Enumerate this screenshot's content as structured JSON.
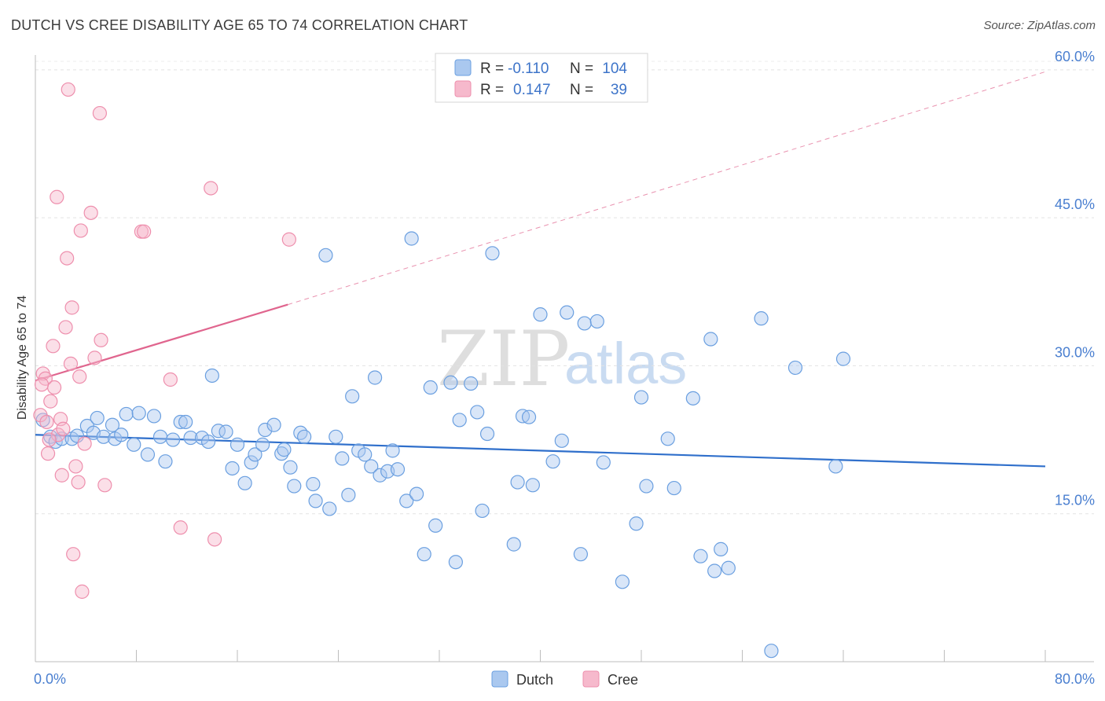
{
  "header": {
    "title": "DUTCH VS CREE DISABILITY AGE 65 TO 74 CORRELATION CHART",
    "source": "Source: ZipAtlas.com"
  },
  "watermark": {
    "zip": "ZIP",
    "atlas": "atlas"
  },
  "legend": {
    "r_label": "R =",
    "n_label": "N =",
    "rows": [
      {
        "series": "Dutch",
        "r": "-0.110",
        "n": "104",
        "color": "#aac8ef"
      },
      {
        "series": "Cree",
        "r": "0.147",
        "n": "39",
        "color": "#f6b9cc"
      }
    ]
  },
  "bottom_legend": [
    {
      "label": "Dutch",
      "color": "#aac8ef"
    },
    {
      "label": "Cree",
      "color": "#f6b9cc"
    }
  ],
  "chart_data": {
    "type": "scatter",
    "title": "DUTCH VS CREE DISABILITY AGE 65 TO 74 CORRELATION CHART",
    "xlabel": "",
    "ylabel": "Disability Age 65 to 74",
    "xlim": [
      0,
      80
    ],
    "ylim": [
      0,
      61.5
    ],
    "x_tick_labels": [
      "0.0%",
      "80.0%"
    ],
    "y_ticks": [
      15,
      30,
      45,
      60
    ],
    "y_tick_labels": [
      "15.0%",
      "30.0%",
      "45.0%",
      "60.0%"
    ],
    "grid": true,
    "legend_position": "top-center",
    "series": [
      {
        "name": "Dutch",
        "color": "#6a9fe0",
        "fill": "#aac8ef",
        "trend": {
          "x": [
            0,
            80
          ],
          "y": [
            23.0,
            19.8
          ],
          "color": "#2f6fcb",
          "style": "solid"
        },
        "points": [
          [
            0.6,
            24.5
          ],
          [
            1.2,
            22.8
          ],
          [
            1.6,
            22.3
          ],
          [
            2.1,
            22.6
          ],
          [
            2.9,
            22.6
          ],
          [
            3.3,
            22.9
          ],
          [
            4.1,
            23.9
          ],
          [
            4.6,
            23.2
          ],
          [
            4.9,
            24.7
          ],
          [
            5.4,
            22.8
          ],
          [
            6.1,
            24.0
          ],
          [
            6.3,
            22.6
          ],
          [
            6.8,
            23.0
          ],
          [
            7.2,
            25.1
          ],
          [
            7.8,
            22.0
          ],
          [
            8.2,
            25.2
          ],
          [
            8.9,
            21.0
          ],
          [
            9.4,
            24.9
          ],
          [
            9.9,
            22.8
          ],
          [
            10.3,
            20.3
          ],
          [
            10.9,
            22.5
          ],
          [
            11.5,
            24.3
          ],
          [
            11.9,
            24.3
          ],
          [
            12.3,
            22.7
          ],
          [
            13.2,
            22.7
          ],
          [
            13.7,
            22.3
          ],
          [
            14.0,
            29.0
          ],
          [
            14.5,
            23.4
          ],
          [
            15.1,
            23.3
          ],
          [
            15.6,
            19.6
          ],
          [
            16.0,
            22.0
          ],
          [
            16.6,
            18.1
          ],
          [
            17.1,
            20.2
          ],
          [
            17.4,
            21.0
          ],
          [
            18.0,
            22.0
          ],
          [
            18.2,
            23.5
          ],
          [
            18.9,
            24.0
          ],
          [
            19.5,
            21.1
          ],
          [
            19.7,
            21.5
          ],
          [
            20.2,
            19.7
          ],
          [
            20.5,
            17.8
          ],
          [
            21.0,
            23.2
          ],
          [
            21.3,
            22.8
          ],
          [
            22.0,
            18.0
          ],
          [
            22.2,
            16.3
          ],
          [
            23.0,
            41.2
          ],
          [
            23.3,
            15.5
          ],
          [
            23.8,
            22.8
          ],
          [
            24.3,
            20.6
          ],
          [
            24.8,
            16.9
          ],
          [
            25.1,
            26.9
          ],
          [
            25.6,
            21.4
          ],
          [
            26.1,
            21.0
          ],
          [
            26.6,
            19.8
          ],
          [
            26.9,
            28.8
          ],
          [
            27.3,
            18.9
          ],
          [
            27.9,
            19.3
          ],
          [
            28.3,
            21.4
          ],
          [
            28.7,
            19.5
          ],
          [
            29.4,
            16.3
          ],
          [
            29.8,
            42.9
          ],
          [
            30.2,
            17.0
          ],
          [
            30.8,
            10.9
          ],
          [
            31.3,
            27.8
          ],
          [
            31.7,
            13.8
          ],
          [
            32.9,
            28.3
          ],
          [
            33.3,
            10.1
          ],
          [
            33.6,
            24.5
          ],
          [
            34.5,
            28.2
          ],
          [
            35.0,
            25.3
          ],
          [
            35.4,
            15.3
          ],
          [
            35.8,
            23.1
          ],
          [
            36.2,
            41.4
          ],
          [
            37.9,
            11.9
          ],
          [
            38.2,
            18.2
          ],
          [
            38.6,
            24.9
          ],
          [
            39.1,
            24.8
          ],
          [
            39.4,
            17.9
          ],
          [
            40.0,
            35.2
          ],
          [
            41.0,
            20.3
          ],
          [
            41.7,
            22.4
          ],
          [
            42.1,
            35.4
          ],
          [
            43.2,
            10.9
          ],
          [
            43.5,
            34.3
          ],
          [
            44.5,
            34.5
          ],
          [
            45.0,
            20.2
          ],
          [
            46.5,
            8.1
          ],
          [
            47.6,
            14.0
          ],
          [
            48.0,
            26.8
          ],
          [
            48.4,
            17.8
          ],
          [
            50.1,
            22.6
          ],
          [
            50.6,
            17.6
          ],
          [
            52.1,
            26.7
          ],
          [
            52.7,
            10.7
          ],
          [
            53.5,
            32.7
          ],
          [
            53.8,
            9.2
          ],
          [
            54.3,
            11.4
          ],
          [
            54.9,
            9.5
          ],
          [
            57.5,
            34.8
          ],
          [
            58.3,
            1.1
          ],
          [
            60.2,
            29.8
          ],
          [
            63.4,
            19.8
          ],
          [
            64.0,
            30.7
          ]
        ]
      },
      {
        "name": "Cree",
        "color": "#ee8fad",
        "fill": "#f6b9cc",
        "trend": {
          "x": [
            0,
            20
          ],
          "y": [
            28.5,
            36.2
          ],
          "color": "#e0658e",
          "style": "solid"
        },
        "trend_extension": {
          "x": [
            20,
            80
          ],
          "y": [
            36.2,
            59.8
          ],
          "style": "dashed"
        },
        "points": [
          [
            0.4,
            25.0
          ],
          [
            0.6,
            29.2
          ],
          [
            0.8,
            28.7
          ],
          [
            1.0,
            21.1
          ],
          [
            1.2,
            26.4
          ],
          [
            1.4,
            32.0
          ],
          [
            1.5,
            27.8
          ],
          [
            1.7,
            47.1
          ],
          [
            1.8,
            23.0
          ],
          [
            2.0,
            24.6
          ],
          [
            2.1,
            18.9
          ],
          [
            2.4,
            33.9
          ],
          [
            2.5,
            40.9
          ],
          [
            2.6,
            58.0
          ],
          [
            2.8,
            30.2
          ],
          [
            2.9,
            35.9
          ],
          [
            3.0,
            10.9
          ],
          [
            3.2,
            19.8
          ],
          [
            3.4,
            18.2
          ],
          [
            3.5,
            28.9
          ],
          [
            3.6,
            43.7
          ],
          [
            3.7,
            7.1
          ],
          [
            3.9,
            22.1
          ],
          [
            4.4,
            45.5
          ],
          [
            4.7,
            30.8
          ],
          [
            5.1,
            55.6
          ],
          [
            5.2,
            32.6
          ],
          [
            5.5,
            17.9
          ],
          [
            8.4,
            43.6
          ],
          [
            8.6,
            43.6
          ],
          [
            10.7,
            28.6
          ],
          [
            11.5,
            13.6
          ],
          [
            13.9,
            48.0
          ],
          [
            14.2,
            12.4
          ],
          [
            20.1,
            42.8
          ],
          [
            0.5,
            28.1
          ],
          [
            1.1,
            22.5
          ],
          [
            0.9,
            24.3
          ],
          [
            2.2,
            23.6
          ]
        ]
      }
    ]
  }
}
